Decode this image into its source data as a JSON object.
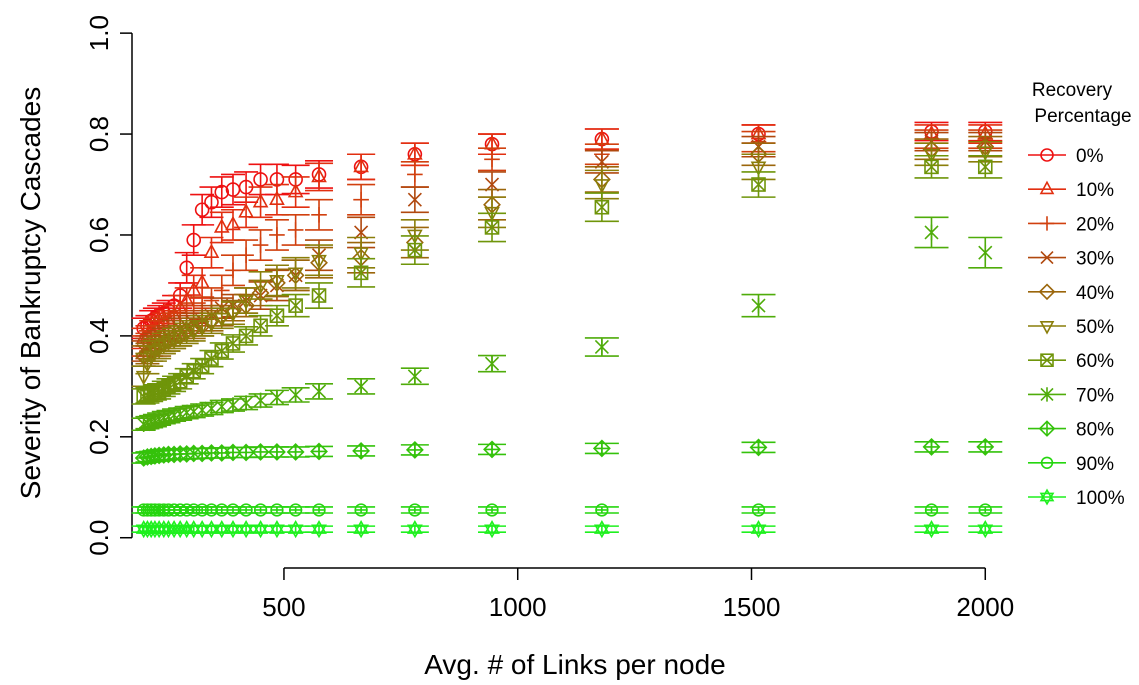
{
  "chart_data": {
    "type": "scatter",
    "title": "",
    "xlabel": "Avg. # of Links per node",
    "ylabel": "Severity of Bankruptcy Cascades",
    "xlim": [
      175,
      2070
    ],
    "ylim": [
      -0.06,
      1.03
    ],
    "x_ticks": [
      500,
      1000,
      1500,
      2000
    ],
    "y_ticks": [
      0.0,
      0.2,
      0.4,
      0.6,
      0.8,
      1.0
    ],
    "x_tick_labels": [
      "500",
      "1000",
      "1500",
      "2000"
    ],
    "y_tick_labels": [
      "0.0",
      "0.2",
      "0.4",
      "0.6",
      "0.8",
      "1.0"
    ],
    "grid": false,
    "error_bars": true,
    "legend": {
      "title_line1": "Recovery",
      "title_line2": "Percentage",
      "placement": "right"
    },
    "x": [
      200,
      208,
      216,
      224,
      233,
      243,
      253,
      265,
      278,
      292,
      307,
      325,
      345,
      367,
      391,
      419,
      450,
      485,
      525,
      575,
      665,
      780,
      945,
      1180,
      1515,
      1885,
      2000
    ],
    "series": [
      {
        "name": "0%",
        "marker": "circle",
        "color": "#ee1111",
        "y": [
          0.415,
          0.42,
          0.43,
          0.435,
          0.44,
          0.445,
          0.45,
          0.46,
          0.48,
          0.535,
          0.59,
          0.65,
          0.665,
          0.685,
          0.69,
          0.695,
          0.71,
          0.71,
          0.71,
          0.72,
          0.735,
          0.76,
          0.78,
          0.79,
          0.8,
          0.805,
          0.805
        ],
        "err": [
          0.02,
          0.02,
          0.02,
          0.02,
          0.02,
          0.02,
          0.02,
          0.02,
          0.025,
          0.03,
          0.03,
          0.03,
          0.03,
          0.03,
          0.03,
          0.03,
          0.03,
          0.03,
          0.028,
          0.027,
          0.025,
          0.022,
          0.02,
          0.02,
          0.018,
          0.018,
          0.018
        ]
      },
      {
        "name": "10%",
        "marker": "triangle",
        "color": "#e22f10",
        "y": [
          0.395,
          0.4,
          0.41,
          0.415,
          0.42,
          0.425,
          0.43,
          0.44,
          0.455,
          0.47,
          0.49,
          0.505,
          0.565,
          0.615,
          0.62,
          0.645,
          0.665,
          0.67,
          0.685,
          0.715,
          0.735,
          0.76,
          0.78,
          0.79,
          0.8,
          0.8,
          0.8
        ],
        "err": [
          0.02,
          0.02,
          0.02,
          0.02,
          0.02,
          0.02,
          0.02,
          0.02,
          0.025,
          0.025,
          0.03,
          0.03,
          0.03,
          0.03,
          0.03,
          0.03,
          0.03,
          0.03,
          0.03,
          0.027,
          0.025,
          0.022,
          0.02,
          0.02,
          0.018,
          0.018,
          0.018
        ]
      },
      {
        "name": "20%",
        "marker": "plus",
        "color": "#d1400f",
        "y": [
          0.38,
          0.385,
          0.39,
          0.4,
          0.41,
          0.415,
          0.42,
          0.425,
          0.43,
          0.44,
          0.445,
          0.455,
          0.47,
          0.49,
          0.53,
          0.56,
          0.58,
          0.6,
          0.61,
          0.64,
          0.67,
          0.72,
          0.75,
          0.76,
          0.785,
          0.79,
          0.79
        ],
        "err": [
          0.02,
          0.02,
          0.02,
          0.02,
          0.02,
          0.02,
          0.02,
          0.02,
          0.02,
          0.02,
          0.02,
          0.022,
          0.025,
          0.03,
          0.03,
          0.03,
          0.03,
          0.03,
          0.03,
          0.03,
          0.03,
          0.025,
          0.022,
          0.02,
          0.02,
          0.018,
          0.018
        ]
      },
      {
        "name": "30%",
        "marker": "x",
        "color": "#b0480e",
        "y": [
          0.37,
          0.375,
          0.38,
          0.385,
          0.39,
          0.395,
          0.4,
          0.41,
          0.415,
          0.42,
          0.425,
          0.43,
          0.44,
          0.455,
          0.46,
          0.47,
          0.48,
          0.5,
          0.52,
          0.56,
          0.605,
          0.67,
          0.7,
          0.745,
          0.775,
          0.785,
          0.785
        ],
        "err": [
          0.02,
          0.02,
          0.02,
          0.02,
          0.02,
          0.02,
          0.02,
          0.02,
          0.02,
          0.02,
          0.02,
          0.02,
          0.02,
          0.02,
          0.022,
          0.025,
          0.027,
          0.03,
          0.03,
          0.03,
          0.03,
          0.025,
          0.025,
          0.022,
          0.02,
          0.018,
          0.018
        ]
      },
      {
        "name": "40%",
        "marker": "diamond",
        "color": "#9b660b",
        "y": [
          0.36,
          0.365,
          0.37,
          0.375,
          0.38,
          0.385,
          0.39,
          0.395,
          0.4,
          0.41,
          0.415,
          0.42,
          0.43,
          0.44,
          0.45,
          0.46,
          0.485,
          0.505,
          0.52,
          0.545,
          0.555,
          0.585,
          0.66,
          0.71,
          0.76,
          0.77,
          0.775
        ],
        "err": [
          0.02,
          0.02,
          0.02,
          0.02,
          0.02,
          0.02,
          0.02,
          0.02,
          0.02,
          0.02,
          0.02,
          0.02,
          0.02,
          0.02,
          0.02,
          0.022,
          0.025,
          0.027,
          0.03,
          0.03,
          0.03,
          0.03,
          0.03,
          0.025,
          0.022,
          0.02,
          0.02
        ]
      },
      {
        "name": "50%",
        "marker": "triangle-down",
        "color": "#8a7e0a",
        "y": [
          0.32,
          0.345,
          0.36,
          0.37,
          0.375,
          0.385,
          0.39,
          0.395,
          0.4,
          0.405,
          0.41,
          0.42,
          0.425,
          0.435,
          0.445,
          0.47,
          0.5,
          0.51,
          0.525,
          0.55,
          0.565,
          0.6,
          0.645,
          0.7,
          0.735,
          0.76,
          0.765
        ],
        "err": [
          0.02,
          0.02,
          0.02,
          0.02,
          0.02,
          0.02,
          0.02,
          0.02,
          0.02,
          0.02,
          0.02,
          0.02,
          0.02,
          0.02,
          0.022,
          0.025,
          0.027,
          0.03,
          0.03,
          0.03,
          0.03,
          0.03,
          0.03,
          0.028,
          0.025,
          0.022,
          0.02
        ]
      },
      {
        "name": "60%",
        "marker": "square-x",
        "color": "#6f950a",
        "y": [
          0.28,
          0.282,
          0.285,
          0.288,
          0.29,
          0.295,
          0.3,
          0.305,
          0.31,
          0.32,
          0.33,
          0.34,
          0.355,
          0.37,
          0.385,
          0.4,
          0.42,
          0.44,
          0.46,
          0.48,
          0.525,
          0.57,
          0.615,
          0.655,
          0.7,
          0.735,
          0.735
        ],
        "err": [
          0.015,
          0.015,
          0.015,
          0.015,
          0.015,
          0.015,
          0.015,
          0.015,
          0.015,
          0.015,
          0.015,
          0.015,
          0.016,
          0.016,
          0.017,
          0.018,
          0.02,
          0.02,
          0.022,
          0.025,
          0.028,
          0.028,
          0.028,
          0.028,
          0.025,
          0.022,
          0.022
        ]
      },
      {
        "name": "70%",
        "marker": "asterisk",
        "color": "#4fac0a",
        "y": [
          0.225,
          0.228,
          0.23,
          0.232,
          0.235,
          0.238,
          0.24,
          0.243,
          0.245,
          0.248,
          0.25,
          0.253,
          0.256,
          0.26,
          0.263,
          0.267,
          0.272,
          0.278,
          0.283,
          0.29,
          0.3,
          0.32,
          0.345,
          0.378,
          0.46,
          0.605,
          0.565
        ],
        "err": [
          0.012,
          0.012,
          0.012,
          0.012,
          0.012,
          0.012,
          0.012,
          0.012,
          0.012,
          0.012,
          0.012,
          0.012,
          0.012,
          0.012,
          0.012,
          0.013,
          0.013,
          0.014,
          0.014,
          0.015,
          0.015,
          0.016,
          0.016,
          0.018,
          0.022,
          0.03,
          0.03
        ]
      },
      {
        "name": "80%",
        "marker": "diamond-plus",
        "color": "#34c20b",
        "y": [
          0.158,
          0.16,
          0.161,
          0.162,
          0.163,
          0.164,
          0.165,
          0.165,
          0.166,
          0.166,
          0.167,
          0.167,
          0.168,
          0.168,
          0.169,
          0.169,
          0.17,
          0.17,
          0.17,
          0.171,
          0.172,
          0.174,
          0.175,
          0.177,
          0.179,
          0.18,
          0.18
        ],
        "err": [
          0.01,
          0.01,
          0.01,
          0.01,
          0.01,
          0.01,
          0.01,
          0.01,
          0.01,
          0.01,
          0.01,
          0.01,
          0.01,
          0.01,
          0.01,
          0.01,
          0.01,
          0.01,
          0.01,
          0.01,
          0.01,
          0.01,
          0.01,
          0.01,
          0.01,
          0.01,
          0.01
        ]
      },
      {
        "name": "90%",
        "marker": "circle-filled",
        "color": "#25d60f",
        "y": [
          0.055,
          0.055,
          0.055,
          0.055,
          0.055,
          0.055,
          0.055,
          0.055,
          0.055,
          0.055,
          0.055,
          0.055,
          0.055,
          0.055,
          0.055,
          0.055,
          0.055,
          0.055,
          0.055,
          0.055,
          0.055,
          0.055,
          0.055,
          0.055,
          0.055,
          0.055,
          0.055
        ],
        "err": [
          0.006,
          0.006,
          0.006,
          0.006,
          0.006,
          0.006,
          0.006,
          0.006,
          0.006,
          0.006,
          0.006,
          0.006,
          0.006,
          0.006,
          0.006,
          0.006,
          0.006,
          0.006,
          0.006,
          0.006,
          0.006,
          0.006,
          0.006,
          0.006,
          0.006,
          0.006,
          0.006
        ]
      },
      {
        "name": "100%",
        "marker": "star-triangle",
        "color": "#1ef01e",
        "y": [
          0.017,
          0.017,
          0.017,
          0.017,
          0.017,
          0.017,
          0.017,
          0.017,
          0.017,
          0.017,
          0.017,
          0.017,
          0.017,
          0.017,
          0.017,
          0.017,
          0.017,
          0.017,
          0.017,
          0.017,
          0.017,
          0.017,
          0.017,
          0.017,
          0.017,
          0.017,
          0.017
        ],
        "err": [
          0.006,
          0.006,
          0.006,
          0.006,
          0.006,
          0.006,
          0.006,
          0.006,
          0.006,
          0.006,
          0.006,
          0.006,
          0.006,
          0.006,
          0.006,
          0.006,
          0.006,
          0.006,
          0.006,
          0.006,
          0.006,
          0.006,
          0.006,
          0.006,
          0.006,
          0.006,
          0.006
        ]
      }
    ]
  }
}
